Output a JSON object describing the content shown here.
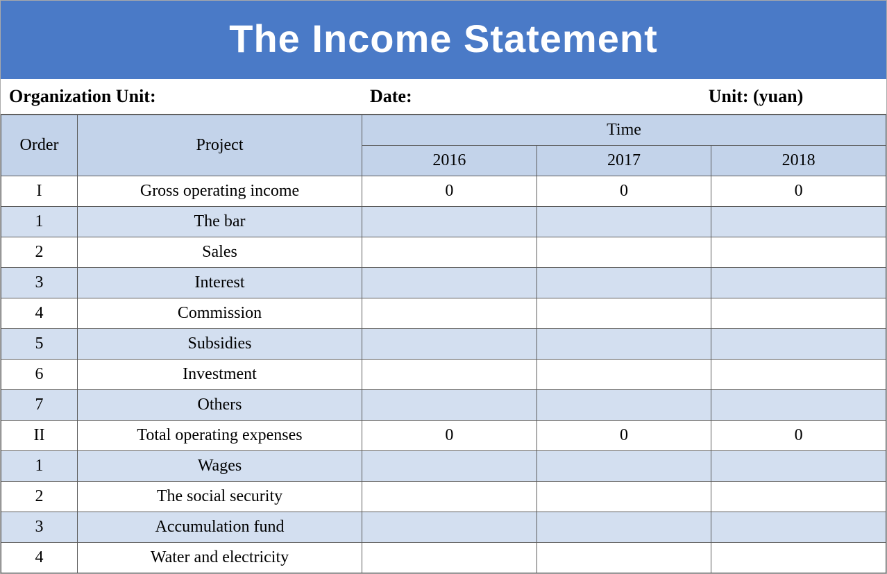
{
  "title": "The Income Statement",
  "meta": {
    "org_label": "Organization Unit:",
    "date_label": "Date:",
    "unit_label": "Unit: (yuan)"
  },
  "table": {
    "headers": {
      "order": "Order",
      "project": "Project",
      "time": "Time",
      "years": [
        "2016",
        "2017",
        "2018"
      ]
    },
    "colors": {
      "header_bg": "#c3d3ea",
      "stripe_a": "#d3dff0",
      "stripe_b": "#ffffff",
      "title_bg": "#4a7ac7",
      "title_fg": "#ffffff",
      "border": "#5a5a5a"
    },
    "rows": [
      {
        "order": "I",
        "project": "Gross operating income",
        "y2016": "0",
        "y2017": "0",
        "y2018": "0",
        "stripe": "odd"
      },
      {
        "order": "1",
        "project": "The bar",
        "y2016": "",
        "y2017": "",
        "y2018": "",
        "stripe": "even"
      },
      {
        "order": "2",
        "project": "Sales",
        "y2016": "",
        "y2017": "",
        "y2018": "",
        "stripe": "odd"
      },
      {
        "order": "3",
        "project": "Interest",
        "y2016": "",
        "y2017": "",
        "y2018": "",
        "stripe": "even"
      },
      {
        "order": "4",
        "project": "Commission",
        "y2016": "",
        "y2017": "",
        "y2018": "",
        "stripe": "odd"
      },
      {
        "order": "5",
        "project": "Subsidies",
        "y2016": "",
        "y2017": "",
        "y2018": "",
        "stripe": "even"
      },
      {
        "order": "6",
        "project": "Investment",
        "y2016": "",
        "y2017": "",
        "y2018": "",
        "stripe": "odd"
      },
      {
        "order": "7",
        "project": "Others",
        "y2016": "",
        "y2017": "",
        "y2018": "",
        "stripe": "even"
      },
      {
        "order": "II",
        "project": "Total operating expenses",
        "y2016": "0",
        "y2017": "0",
        "y2018": "0",
        "stripe": "odd"
      },
      {
        "order": "1",
        "project": "Wages",
        "y2016": "",
        "y2017": "",
        "y2018": "",
        "stripe": "even"
      },
      {
        "order": "2",
        "project": "The social security",
        "y2016": "",
        "y2017": "",
        "y2018": "",
        "stripe": "odd"
      },
      {
        "order": "3",
        "project": "Accumulation fund",
        "y2016": "",
        "y2017": "",
        "y2018": "",
        "stripe": "even"
      },
      {
        "order": "4",
        "project": "Water and electricity",
        "y2016": "",
        "y2017": "",
        "y2018": "",
        "stripe": "odd"
      }
    ]
  }
}
